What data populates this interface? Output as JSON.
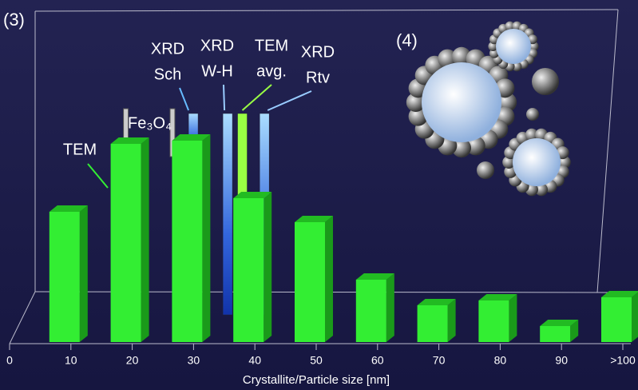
{
  "chart_data": {
    "type": "bar3d",
    "panel_label": "(3)",
    "inset_label": "(4)",
    "x_label": "Crystallite/Particle size [nm]",
    "xlim": [
      0,
      100
    ],
    "xticks": [
      0,
      10,
      20,
      30,
      40,
      50,
      60,
      70,
      80,
      90,
      {
        "value": 100,
        "label": ">100"
      }
    ],
    "ylim": [
      0,
      300
    ],
    "series": [
      {
        "name": "TEM",
        "color": "#33ee33",
        "x": [
          10,
          20,
          30,
          40,
          50,
          60,
          70,
          80,
          90,
          100
        ],
        "values": [
          163,
          248,
          252,
          180,
          150,
          78,
          46,
          52,
          20,
          56
        ]
      }
    ],
    "markers": [
      {
        "line1": "XRD",
        "line2": "Sch",
        "x": 31,
        "color": "#66bbff"
      },
      {
        "line1": "XRD",
        "line2": "W-H",
        "x": 36.6,
        "color": "#99ccff"
      },
      {
        "line1": "TEM",
        "line2": "avg.",
        "x": 39,
        "color": "#99ff44"
      },
      {
        "line1": "XRD",
        "line2": "Rtv",
        "x": 42.6,
        "color": "#99ccff"
      }
    ],
    "fe_label": "Fe₃O₄",
    "fe_lines": [
      20,
      27.6
    ]
  }
}
